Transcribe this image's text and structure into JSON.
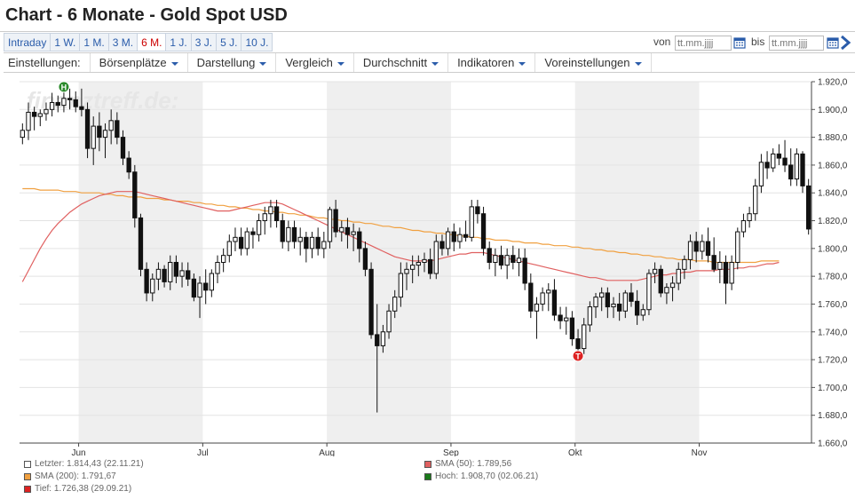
{
  "page": {
    "title": "Chart - 6 Monate - Gold Spot USD"
  },
  "ranges": [
    "Intraday",
    "1 W.",
    "1 M.",
    "3 M.",
    "6 M.",
    "1 J.",
    "3 J.",
    "5 J.",
    "10 J."
  ],
  "active_range": "6 M.",
  "date_filter": {
    "from_label": "von",
    "to_label": "bis",
    "placeholder": "tt.mm.jjjj"
  },
  "menu": {
    "label": "Einstellungen:",
    "items": [
      "Börsenplätze",
      "Darstellung",
      "Vergleich",
      "Durchschnitt",
      "Indikatoren",
      "Voreinstellungen"
    ]
  },
  "watermark": "finanztreff.de:",
  "colors": {
    "sma50": "#e06060",
    "sma200": "#f0a040",
    "high": "#2a8a2a",
    "low": "#dd2222",
    "accent": "#2a5caa"
  },
  "chart_data": {
    "type": "candlestick",
    "ylim": [
      1660,
      1920
    ],
    "y_ticks": [
      "1.660,0",
      "1.680,0",
      "1.700,0",
      "1.720,0",
      "1.740,0",
      "1.760,0",
      "1.780,0",
      "1.800,0",
      "1.820,0",
      "1.840,0",
      "1.860,0",
      "1.880,0",
      "1.900,0",
      "1.920,0"
    ],
    "x_ticks": [
      "Jun",
      "Jul",
      "Aug",
      "Sep",
      "Okt",
      "Nov"
    ],
    "x_tick_index": [
      10,
      31,
      52,
      73,
      94,
      115
    ],
    "shaded_months": [
      [
        10,
        31
      ],
      [
        52,
        73
      ],
      [
        94,
        115
      ]
    ],
    "candles": [
      [
        1880,
        1890,
        1875,
        1885
      ],
      [
        1885,
        1905,
        1878,
        1898
      ],
      [
        1898,
        1902,
        1885,
        1895
      ],
      [
        1895,
        1900,
        1888,
        1897
      ],
      [
        1897,
        1905,
        1892,
        1900
      ],
      [
        1900,
        1912,
        1895,
        1905
      ],
      [
        1905,
        1910,
        1898,
        1903
      ],
      [
        1903,
        1915,
        1898,
        1908
      ],
      [
        1908,
        1915,
        1900,
        1907
      ],
      [
        1907,
        1913,
        1898,
        1902
      ],
      [
        1902,
        1915,
        1895,
        1900
      ],
      [
        1900,
        1905,
        1865,
        1872
      ],
      [
        1872,
        1895,
        1860,
        1888
      ],
      [
        1888,
        1898,
        1870,
        1880
      ],
      [
        1880,
        1890,
        1865,
        1885
      ],
      [
        1885,
        1900,
        1875,
        1892
      ],
      [
        1892,
        1898,
        1875,
        1880
      ],
      [
        1880,
        1885,
        1860,
        1865
      ],
      [
        1865,
        1870,
        1850,
        1855
      ],
      [
        1855,
        1860,
        1815,
        1822
      ],
      [
        1822,
        1825,
        1780,
        1785
      ],
      [
        1785,
        1790,
        1762,
        1768
      ],
      [
        1768,
        1782,
        1762,
        1778
      ],
      [
        1778,
        1790,
        1770,
        1785
      ],
      [
        1785,
        1788,
        1772,
        1776
      ],
      [
        1776,
        1795,
        1770,
        1790
      ],
      [
        1790,
        1795,
        1775,
        1780
      ],
      [
        1780,
        1790,
        1772,
        1784
      ],
      [
        1784,
        1790,
        1773,
        1778
      ],
      [
        1778,
        1782,
        1762,
        1765
      ],
      [
        1765,
        1780,
        1750,
        1775
      ],
      [
        1775,
        1785,
        1760,
        1770
      ],
      [
        1770,
        1785,
        1765,
        1782
      ],
      [
        1782,
        1795,
        1775,
        1790
      ],
      [
        1790,
        1800,
        1783,
        1795
      ],
      [
        1795,
        1810,
        1790,
        1805
      ],
      [
        1805,
        1815,
        1798,
        1808
      ],
      [
        1808,
        1815,
        1795,
        1800
      ],
      [
        1800,
        1815,
        1795,
        1812
      ],
      [
        1812,
        1815,
        1800,
        1810
      ],
      [
        1810,
        1825,
        1805,
        1820
      ],
      [
        1820,
        1830,
        1810,
        1825
      ],
      [
        1825,
        1835,
        1815,
        1830
      ],
      [
        1830,
        1835,
        1815,
        1820
      ],
      [
        1820,
        1825,
        1800,
        1805
      ],
      [
        1805,
        1820,
        1798,
        1815
      ],
      [
        1815,
        1820,
        1800,
        1805
      ],
      [
        1805,
        1815,
        1795,
        1808
      ],
      [
        1808,
        1812,
        1790,
        1800
      ],
      [
        1800,
        1812,
        1793,
        1808
      ],
      [
        1808,
        1815,
        1795,
        1800
      ],
      [
        1800,
        1812,
        1793,
        1805
      ],
      [
        1805,
        1830,
        1800,
        1828
      ],
      [
        1828,
        1835,
        1808,
        1812
      ],
      [
        1812,
        1820,
        1805,
        1815
      ],
      [
        1815,
        1822,
        1800,
        1810
      ],
      [
        1810,
        1818,
        1798,
        1812
      ],
      [
        1812,
        1815,
        1790,
        1800
      ],
      [
        1800,
        1805,
        1780,
        1785
      ],
      [
        1785,
        1790,
        1735,
        1738
      ],
      [
        1738,
        1760,
        1682,
        1730
      ],
      [
        1730,
        1745,
        1725,
        1740
      ],
      [
        1740,
        1760,
        1735,
        1755
      ],
      [
        1755,
        1770,
        1750,
        1765
      ],
      [
        1765,
        1790,
        1758,
        1782
      ],
      [
        1782,
        1790,
        1770,
        1785
      ],
      [
        1785,
        1795,
        1775,
        1788
      ],
      [
        1788,
        1795,
        1780,
        1790
      ],
      [
        1790,
        1797,
        1783,
        1792
      ],
      [
        1792,
        1800,
        1778,
        1782
      ],
      [
        1782,
        1810,
        1778,
        1805
      ],
      [
        1805,
        1810,
        1795,
        1800
      ],
      [
        1800,
        1815,
        1795,
        1812
      ],
      [
        1812,
        1818,
        1798,
        1805
      ],
      [
        1805,
        1815,
        1800,
        1810
      ],
      [
        1810,
        1820,
        1805,
        1808
      ],
      [
        1808,
        1835,
        1805,
        1830
      ],
      [
        1830,
        1835,
        1818,
        1825
      ],
      [
        1825,
        1830,
        1795,
        1800
      ],
      [
        1800,
        1805,
        1785,
        1790
      ],
      [
        1790,
        1800,
        1780,
        1795
      ],
      [
        1795,
        1802,
        1785,
        1788
      ],
      [
        1788,
        1800,
        1778,
        1795
      ],
      [
        1795,
        1802,
        1785,
        1790
      ],
      [
        1790,
        1800,
        1780,
        1793
      ],
      [
        1793,
        1800,
        1770,
        1775
      ],
      [
        1775,
        1782,
        1750,
        1755
      ],
      [
        1755,
        1765,
        1735,
        1760
      ],
      [
        1760,
        1772,
        1755,
        1768
      ],
      [
        1768,
        1775,
        1755,
        1770
      ],
      [
        1770,
        1778,
        1748,
        1752
      ],
      [
        1752,
        1758,
        1742,
        1748
      ],
      [
        1748,
        1758,
        1738,
        1750
      ],
      [
        1750,
        1755,
        1730,
        1735
      ],
      [
        1735,
        1742,
        1724,
        1728
      ],
      [
        1728,
        1750,
        1724,
        1745
      ],
      [
        1745,
        1762,
        1740,
        1758
      ],
      [
        1758,
        1768,
        1750,
        1765
      ],
      [
        1765,
        1772,
        1755,
        1768
      ],
      [
        1768,
        1772,
        1750,
        1758
      ],
      [
        1758,
        1765,
        1750,
        1760
      ],
      [
        1760,
        1768,
        1748,
        1755
      ],
      [
        1755,
        1770,
        1750,
        1768
      ],
      [
        1768,
        1775,
        1758,
        1762
      ],
      [
        1762,
        1770,
        1745,
        1752
      ],
      [
        1752,
        1760,
        1748,
        1756
      ],
      [
        1756,
        1785,
        1752,
        1782
      ],
      [
        1782,
        1790,
        1775,
        1785
      ],
      [
        1785,
        1788,
        1765,
        1768
      ],
      [
        1768,
        1775,
        1760,
        1772
      ],
      [
        1772,
        1780,
        1762,
        1775
      ],
      [
        1775,
        1790,
        1770,
        1785
      ],
      [
        1785,
        1795,
        1778,
        1792
      ],
      [
        1792,
        1810,
        1785,
        1805
      ],
      [
        1805,
        1812,
        1790,
        1798
      ],
      [
        1798,
        1810,
        1792,
        1805
      ],
      [
        1805,
        1815,
        1790,
        1795
      ],
      [
        1795,
        1808,
        1783,
        1785
      ],
      [
        1785,
        1798,
        1775,
        1790
      ],
      [
        1790,
        1795,
        1760,
        1775
      ],
      [
        1775,
        1795,
        1770,
        1790
      ],
      [
        1790,
        1815,
        1785,
        1812
      ],
      [
        1812,
        1825,
        1808,
        1820
      ],
      [
        1820,
        1830,
        1815,
        1825
      ],
      [
        1825,
        1850,
        1820,
        1845
      ],
      [
        1845,
        1868,
        1840,
        1862
      ],
      [
        1862,
        1870,
        1850,
        1858
      ],
      [
        1858,
        1872,
        1855,
        1868
      ],
      [
        1868,
        1875,
        1860,
        1865
      ],
      [
        1865,
        1878,
        1855,
        1860
      ],
      [
        1860,
        1872,
        1845,
        1850
      ],
      [
        1850,
        1872,
        1845,
        1868
      ],
      [
        1868,
        1870,
        1840,
        1845
      ],
      [
        1845,
        1850,
        1810,
        1814
      ]
    ],
    "sma50": [
      1776,
      1784,
      1792,
      1800,
      1807,
      1813,
      1818,
      1822,
      1826,
      1829,
      1832,
      1834,
      1836,
      1838,
      1839,
      1840,
      1841,
      1841,
      1841,
      1841,
      1840,
      1839,
      1838,
      1837,
      1836,
      1835,
      1834,
      1833,
      1832,
      1831,
      1830,
      1829,
      1828,
      1827,
      1827,
      1827,
      1828,
      1829,
      1830,
      1831,
      1832,
      1833,
      1833,
      1833,
      1832,
      1830,
      1828,
      1826,
      1824,
      1822,
      1820,
      1818,
      1816,
      1814,
      1812,
      1810,
      1808,
      1806,
      1804,
      1802,
      1800,
      1798,
      1796,
      1794,
      1793,
      1792,
      1791,
      1791,
      1791,
      1791,
      1792,
      1793,
      1794,
      1795,
      1796,
      1796,
      1797,
      1797,
      1797,
      1796,
      1795,
      1794,
      1793,
      1792,
      1791,
      1790,
      1789,
      1788,
      1787,
      1786,
      1785,
      1784,
      1783,
      1782,
      1781,
      1780,
      1779,
      1779,
      1778,
      1777,
      1777,
      1777,
      1777,
      1777,
      1777,
      1778,
      1779,
      1780,
      1781,
      1781,
      1782,
      1782,
      1783,
      1783,
      1784,
      1784,
      1784,
      1784,
      1785,
      1785,
      1785,
      1786,
      1786,
      1787,
      1787,
      1788,
      1789,
      1789,
      1790
    ],
    "sma200": [
      1843,
      1843,
      1843,
      1842,
      1842,
      1842,
      1842,
      1841,
      1841,
      1841,
      1840,
      1840,
      1840,
      1840,
      1839,
      1839,
      1838,
      1838,
      1837,
      1837,
      1837,
      1836,
      1836,
      1836,
      1835,
      1835,
      1834,
      1834,
      1834,
      1833,
      1833,
      1832,
      1832,
      1831,
      1831,
      1830,
      1830,
      1829,
      1829,
      1828,
      1828,
      1827,
      1827,
      1826,
      1826,
      1825,
      1825,
      1824,
      1824,
      1823,
      1822,
      1822,
      1821,
      1821,
      1820,
      1820,
      1819,
      1819,
      1818,
      1818,
      1817,
      1816,
      1816,
      1815,
      1815,
      1814,
      1813,
      1813,
      1812,
      1812,
      1811,
      1811,
      1810,
      1810,
      1809,
      1809,
      1808,
      1808,
      1807,
      1807,
      1806,
      1806,
      1806,
      1805,
      1805,
      1804,
      1804,
      1804,
      1803,
      1803,
      1802,
      1802,
      1802,
      1801,
      1801,
      1800,
      1800,
      1799,
      1799,
      1798,
      1798,
      1797,
      1797,
      1796,
      1796,
      1795,
      1795,
      1794,
      1794,
      1793,
      1793,
      1792,
      1792,
      1792,
      1791,
      1791,
      1791,
      1790,
      1790,
      1790,
      1790,
      1790,
      1790,
      1790,
      1790,
      1791,
      1791,
      1791,
      1791
    ],
    "high_marker": {
      "index": 7,
      "label": "H"
    },
    "low_marker": {
      "index": 94,
      "label": "T"
    },
    "legend": [
      {
        "swatch": "#ffffff",
        "text": "Letzter: 1.814,43 (22.11.21)"
      },
      {
        "swatch": "#e06060",
        "text": "SMA (50): 1.789,56"
      },
      {
        "swatch": "#f0a040",
        "text": "SMA (200): 1.791,67"
      },
      {
        "swatch": "#1a7a1a",
        "text": "Hoch: 1.908,70 (02.06.21)"
      },
      {
        "swatch": "#dd2222",
        "text": "Tief: 1.726,38 (29.09.21)"
      }
    ]
  }
}
